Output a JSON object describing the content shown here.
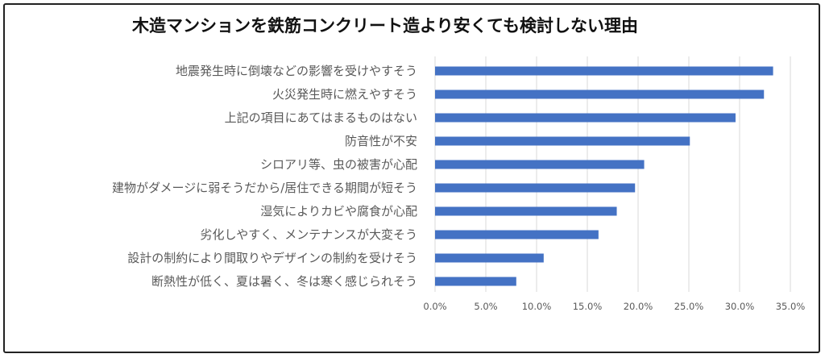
{
  "chart_data": {
    "type": "bar",
    "orientation": "horizontal",
    "title": "木造マンションを鉄筋コンクリート造より安くても検討しない理由",
    "categories": [
      "地震発生時に倒壊などの影響を受けやすそう",
      "火災発生時に燃えやすそう",
      "上記の項目にあてはまるものはない",
      "防音性が不安",
      "シロアリ等、虫の被害が心配",
      "建物がダメージに弱そうだから/居住できる期間が短そう",
      "湿気によりカビや腐食が心配",
      "劣化しやすく、メンテナンスが大変そう",
      "設計の制約により間取りやデザインの制約を受けそう",
      "断熱性が低く、夏は暑く、冬は寒く感じられそう"
    ],
    "values": [
      33.3,
      32.4,
      29.6,
      25.1,
      20.6,
      19.7,
      17.9,
      16.1,
      10.7,
      8.0
    ],
    "xlim": [
      0,
      35
    ],
    "x_ticks": [
      "0.0%",
      "5.0%",
      "10.0%",
      "15.0%",
      "20.0%",
      "25.0%",
      "30.0%",
      "35.0%"
    ],
    "grid": true,
    "bar_color": "#4472C4"
  }
}
